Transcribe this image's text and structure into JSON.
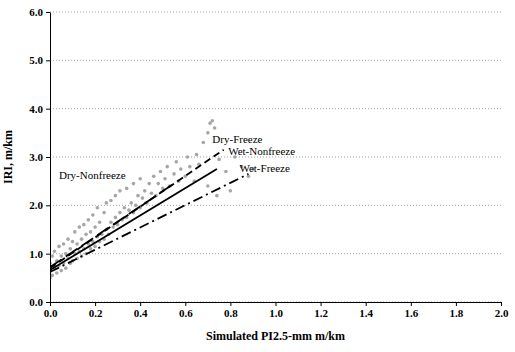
{
  "chart_data": {
    "type": "scatter",
    "xlabel": "Simulated PI2.5-mm m/km",
    "ylabel": "IRI, m/km",
    "xlim": [
      0,
      2.0
    ],
    "ylim": [
      0,
      6.0
    ],
    "xticks": [
      {
        "value": 0,
        "label": "0.0"
      },
      {
        "value": 0.2,
        "label": "0.2"
      },
      {
        "value": 0.4,
        "label": "0.4"
      },
      {
        "value": 0.6,
        "label": "0.6"
      },
      {
        "value": 0.8,
        "label": "0.8"
      },
      {
        "value": 1.0,
        "label": "1.0"
      },
      {
        "value": 1.2,
        "label": "1.2"
      },
      {
        "value": 1.4,
        "label": "1.4"
      },
      {
        "value": 1.6,
        "label": "1.6"
      },
      {
        "value": 1.8,
        "label": "1.8"
      },
      {
        "value": 2.0,
        "label": "2.0"
      }
    ],
    "yticks": [
      {
        "value": 0,
        "label": "0.0"
      },
      {
        "value": 1.0,
        "label": "1.0"
      },
      {
        "value": 2.0,
        "label": "2.0"
      },
      {
        "value": 3.0,
        "label": "3.0"
      },
      {
        "value": 4.0,
        "label": "4.0"
      },
      {
        "value": 5.0,
        "label": "5.0"
      },
      {
        "value": 6.0,
        "label": "6.0"
      }
    ],
    "grid": true,
    "series": [
      {
        "type": "scatter",
        "marker": "circle",
        "color": "#a6a6a6",
        "x": [
          0,
          0,
          0,
          0.01,
          0.01,
          0.02,
          0.02,
          0.03,
          0.03,
          0.04,
          0.04,
          0.05,
          0.05,
          0.06,
          0.06,
          0.07,
          0.07,
          0.08,
          0.08,
          0.09,
          0.09,
          0.1,
          0.1,
          0.11,
          0.11,
          0.12,
          0.12,
          0.13,
          0.13,
          0.14,
          0.14,
          0.15,
          0.15,
          0.16,
          0.16,
          0.17,
          0.17,
          0.18,
          0.18,
          0.19,
          0.19,
          0.2,
          0.2,
          0.21,
          0.21,
          0.22,
          0.22,
          0.23,
          0.24,
          0.24,
          0.25,
          0.25,
          0.26,
          0.27,
          0.27,
          0.28,
          0.29,
          0.29,
          0.3,
          0.31,
          0.31,
          0.32,
          0.33,
          0.34,
          0.34,
          0.35,
          0.36,
          0.37,
          0.37,
          0.38,
          0.39,
          0.4,
          0.4,
          0.41,
          0.42,
          0.43,
          0.44,
          0.45,
          0.46,
          0.47,
          0.48,
          0.49,
          0.5,
          0.51,
          0.52,
          0.53,
          0.55,
          0.56,
          0.57,
          0.58,
          0.6,
          0.61,
          0.62,
          0.64,
          0.65,
          0.66,
          0.68,
          0.7,
          0.71,
          0.72,
          0.73,
          0.7,
          0.74,
          0.75,
          0.78,
          0.8,
          0.82,
          0.85,
          0.88,
          0.9
        ],
        "values": [
          0.5,
          0.65,
          0.8,
          0.95,
          0.55,
          0.7,
          1.05,
          0.6,
          0.85,
          0.75,
          1.15,
          0.65,
          0.95,
          0.8,
          1.2,
          0.7,
          1,
          0.9,
          1.3,
          0.8,
          1.1,
          0.85,
          1.25,
          1,
          1.45,
          0.9,
          1.2,
          1.05,
          1.55,
          0.95,
          1.3,
          1.1,
          1.6,
          1,
          1.4,
          1.2,
          1.7,
          1.1,
          1.45,
          1.25,
          1.8,
          1.15,
          1.55,
          1.35,
          1.95,
          1.25,
          1.65,
          1.4,
          1.3,
          1.85,
          1.5,
          2.05,
          1.4,
          1.65,
          2.1,
          1.55,
          1.75,
          2.2,
          1.6,
          1.85,
          2.3,
          1.7,
          1.95,
          1.75,
          2.35,
          1.9,
          2.05,
          1.85,
          2.45,
          2,
          2.2,
          1.95,
          2.55,
          2.15,
          2.3,
          2.05,
          2.45,
          2.25,
          2.6,
          2.2,
          2.45,
          2.7,
          2.35,
          2.55,
          2.8,
          2.4,
          2.65,
          2.9,
          2.5,
          2.75,
          2.6,
          3,
          2.8,
          2.5,
          3.05,
          2.85,
          3.3,
          3.5,
          3.7,
          3.75,
          3.6,
          2.4,
          2.2,
          2.95,
          2.7,
          2.3,
          3,
          2.8,
          2.6,
          2.75
        ]
      },
      {
        "type": "line",
        "line_style": "longdash",
        "color": "#000000",
        "x": [
          0,
          0.55
        ],
        "values": [
          0.72,
          2.45
        ]
      },
      {
        "type": "line",
        "line_style": "dashed",
        "color": "#000000",
        "x": [
          0,
          0.77
        ],
        "values": [
          0.7,
          3.15
        ]
      },
      {
        "type": "line",
        "line_style": "solid",
        "color": "#000000",
        "x": [
          0,
          0.74
        ],
        "values": [
          0.66,
          2.75
        ]
      },
      {
        "type": "line",
        "line_style": "dashdot",
        "color": "#000000",
        "x": [
          0,
          0.88
        ],
        "values": [
          0.62,
          2.65
        ]
      }
    ],
    "annotations": [
      {
        "text": "Dry-Nonfreeze",
        "x": 0.04,
        "y": 2.55
      },
      {
        "text": "Dry-Freeze",
        "x": 0.72,
        "y": 3.3
      },
      {
        "text": "Wet-Nonfreeze",
        "x": 0.79,
        "y": 3.05
      },
      {
        "text": "Wet-Freeze",
        "x": 0.84,
        "y": 2.7
      }
    ]
  }
}
